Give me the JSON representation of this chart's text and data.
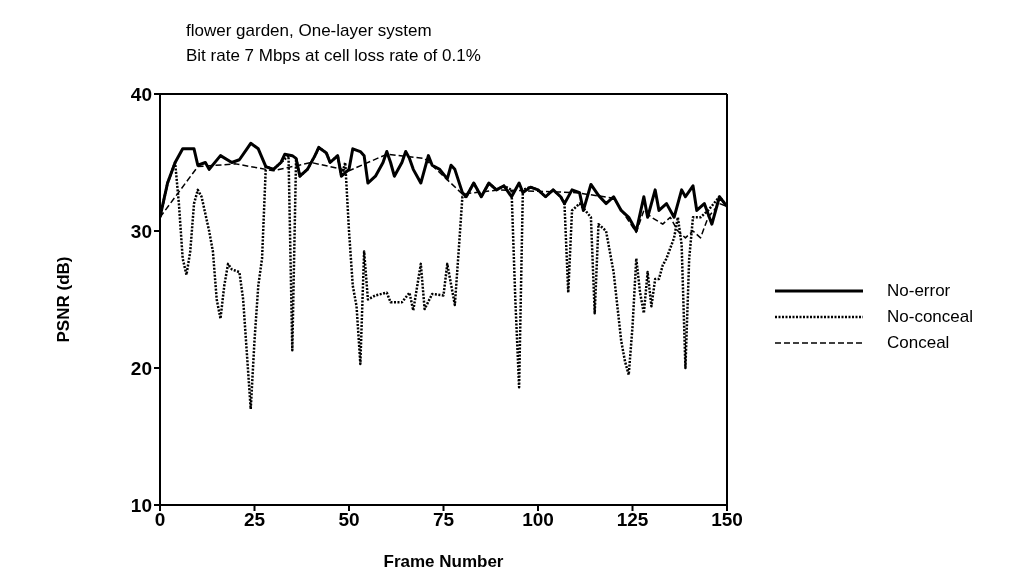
{
  "chart_data": {
    "type": "line",
    "title": "flower garden, One-layer system",
    "subtitle": "Bit rate 7 Mbps at cell loss rate of 0.1%",
    "xlabel": "Frame Number",
    "ylabel": "PSNR  (dB)",
    "xlim": [
      0,
      150
    ],
    "xticks": [
      0,
      25,
      50,
      75,
      100,
      125,
      150
    ],
    "ylim": [
      10,
      40
    ],
    "yticks": [
      10,
      20,
      30,
      40
    ],
    "legend": "right",
    "marker": "none",
    "series": [
      {
        "name": "No-error",
        "color": "#000000",
        "line_style": "solid",
        "x": [
          0,
          2,
          4,
          6,
          9,
          10,
          12,
          13,
          16,
          19,
          21,
          23,
          24,
          26,
          28,
          30,
          32,
          33,
          35,
          36,
          37,
          39,
          41,
          42,
          44,
          45,
          47,
          48,
          50,
          51,
          53,
          54,
          55,
          57,
          59,
          60,
          61,
          62,
          64,
          65,
          66,
          67,
          69,
          71,
          72,
          74,
          76,
          77,
          78,
          80,
          81,
          83,
          85,
          87,
          89,
          91,
          93,
          95,
          96,
          98,
          100,
          102,
          104,
          106,
          107,
          109,
          111,
          112,
          114,
          116,
          118,
          120,
          122,
          124,
          126,
          128,
          129,
          131,
          132,
          134,
          136,
          138,
          139,
          141,
          142,
          144,
          146,
          148,
          150
        ],
        "values": [
          31,
          33.5,
          35,
          36,
          36,
          34.8,
          35,
          34.5,
          35.5,
          35,
          35.2,
          36,
          36.4,
          36,
          34.7,
          34.5,
          35,
          35.6,
          35.5,
          35.3,
          34,
          34.5,
          35.5,
          36.1,
          35.7,
          35,
          35.5,
          34,
          34.5,
          36,
          35.8,
          35.5,
          33.5,
          34,
          35,
          35.8,
          35,
          34,
          35,
          35.8,
          35.3,
          34.5,
          33.5,
          35.5,
          34.8,
          34.5,
          33.8,
          34.8,
          34.5,
          32.8,
          32.5,
          33.5,
          32.5,
          33.5,
          33,
          33.3,
          32.5,
          33.5,
          32.8,
          33.2,
          33,
          32.5,
          33,
          32.5,
          32,
          33,
          32.8,
          31.5,
          33.4,
          32.6,
          32,
          32.5,
          31.5,
          31,
          30,
          32.5,
          31,
          33,
          31.5,
          32,
          31,
          33,
          32.5,
          33.3,
          31.5,
          32,
          30.5,
          32.5,
          31.8
        ]
      },
      {
        "name": "No-conceal",
        "color": "#000000",
        "line_style": "dotted",
        "x": [
          0,
          2,
          4,
          5,
          6,
          7,
          8,
          9,
          10,
          11,
          13,
          14,
          15,
          16,
          17,
          18,
          19,
          21,
          22,
          23,
          24,
          25,
          26,
          27,
          28,
          30,
          32,
          34,
          35,
          36,
          37,
          39,
          41,
          42,
          44,
          45,
          47,
          48,
          49,
          50,
          51,
          52,
          53,
          54,
          55,
          57,
          60,
          61,
          64,
          66,
          67,
          69,
          70,
          72,
          75,
          76,
          78,
          79,
          80,
          81,
          83,
          85,
          87,
          89,
          91,
          93,
          94,
          95,
          96,
          98,
          100,
          102,
          104,
          106,
          107,
          108,
          109,
          111,
          114,
          115,
          116,
          118,
          120,
          122,
          123,
          124,
          125,
          126,
          127,
          128,
          129,
          130,
          131,
          132,
          133,
          134,
          136,
          137,
          138,
          139,
          140,
          141,
          143,
          145,
          148,
          150
        ],
        "values": [
          31,
          33.5,
          35,
          32,
          28,
          26.8,
          28.5,
          32,
          33,
          32.5,
          30,
          28.5,
          25,
          23.6,
          26,
          27.6,
          27.2,
          27,
          25,
          21,
          17,
          22,
          26,
          28,
          34.7,
          34.5,
          35,
          35.5,
          21.3,
          35.3,
          34,
          34.5,
          35.5,
          36.1,
          35.7,
          35,
          35.5,
          34,
          35,
          30,
          26,
          24.5,
          20.3,
          28.5,
          25,
          25.3,
          25.5,
          24.8,
          24.8,
          25.5,
          24.2,
          27.6,
          24.3,
          25.4,
          25.3,
          27.6,
          24.6,
          28.5,
          32.5,
          32.5,
          33.5,
          32.5,
          33.5,
          33,
          33.3,
          33,
          25,
          18.6,
          33,
          33.2,
          33,
          32.5,
          33,
          32.5,
          32,
          25.5,
          31.5,
          32,
          31,
          24,
          30.5,
          30,
          27,
          22,
          20.5,
          19.5,
          23,
          28,
          25.5,
          24,
          27,
          24.5,
          26.5,
          26.5,
          27.5,
          28,
          29.5,
          31,
          29,
          20,
          28,
          31,
          31,
          31.5,
          32.5,
          31.8
        ]
      },
      {
        "name": "Conceal",
        "color": "#000000",
        "line_style": "dashed",
        "x": [
          0,
          10,
          20,
          30,
          40,
          50,
          60,
          70,
          80,
          90,
          100,
          110,
          120,
          126,
          128,
          130,
          133,
          135,
          137,
          139,
          141,
          143,
          145,
          148,
          150
        ],
        "values": [
          31,
          34.7,
          34.9,
          34.4,
          35,
          34.4,
          35.6,
          35.3,
          32.7,
          33,
          32.9,
          32.8,
          32.4,
          29.9,
          31.5,
          31,
          30.5,
          31,
          30,
          29.5,
          30,
          29.5,
          31,
          32,
          31.8
        ]
      }
    ]
  }
}
